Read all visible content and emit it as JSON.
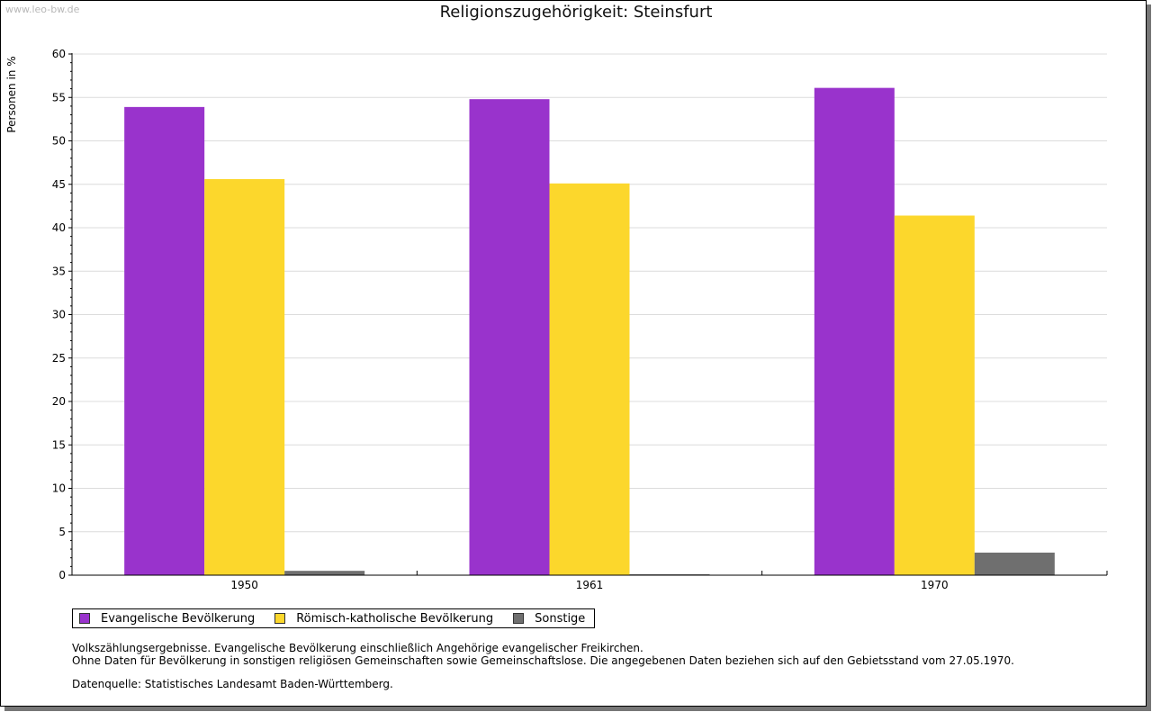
{
  "watermark": "www.leo-bw.de",
  "chart_data": {
    "type": "bar",
    "title": "Religionszugehörigkeit: Steinsfurt",
    "ylabel": "Personen in %",
    "xlabel": "",
    "ylim": [
      0,
      60
    ],
    "yticks": [
      0,
      5,
      10,
      15,
      20,
      25,
      30,
      35,
      40,
      45,
      50,
      55,
      60
    ],
    "grid": true,
    "categories": [
      "1950",
      "1961",
      "1970"
    ],
    "series": [
      {
        "name": "Evangelische Bevölkerung",
        "color": "#9933cc",
        "values": [
          53.9,
          54.8,
          56.1
        ]
      },
      {
        "name": "Römisch-katholische Bevölkerung",
        "color": "#fcd72c",
        "values": [
          45.6,
          45.1,
          41.4
        ]
      },
      {
        "name": "Sonstige",
        "color": "#6f6f6f",
        "values": [
          0.5,
          0.1,
          2.6
        ]
      }
    ],
    "legend_position": "bottom-left"
  },
  "notes": {
    "line1": "Volkszählungsergebnisse. Evangelische Bevölkerung einschließlich Angehörige evangelischer Freikirchen.",
    "line2": "Ohne Daten für Bevölkerung in sonstigen religiösen Gemeinschaften sowie Gemeinschaftslose. Die angegebenen Daten beziehen sich auf den Gebietsstand vom 27.05.1970."
  },
  "source": "Datenquelle: Statistisches Landesamt Baden-Württemberg."
}
